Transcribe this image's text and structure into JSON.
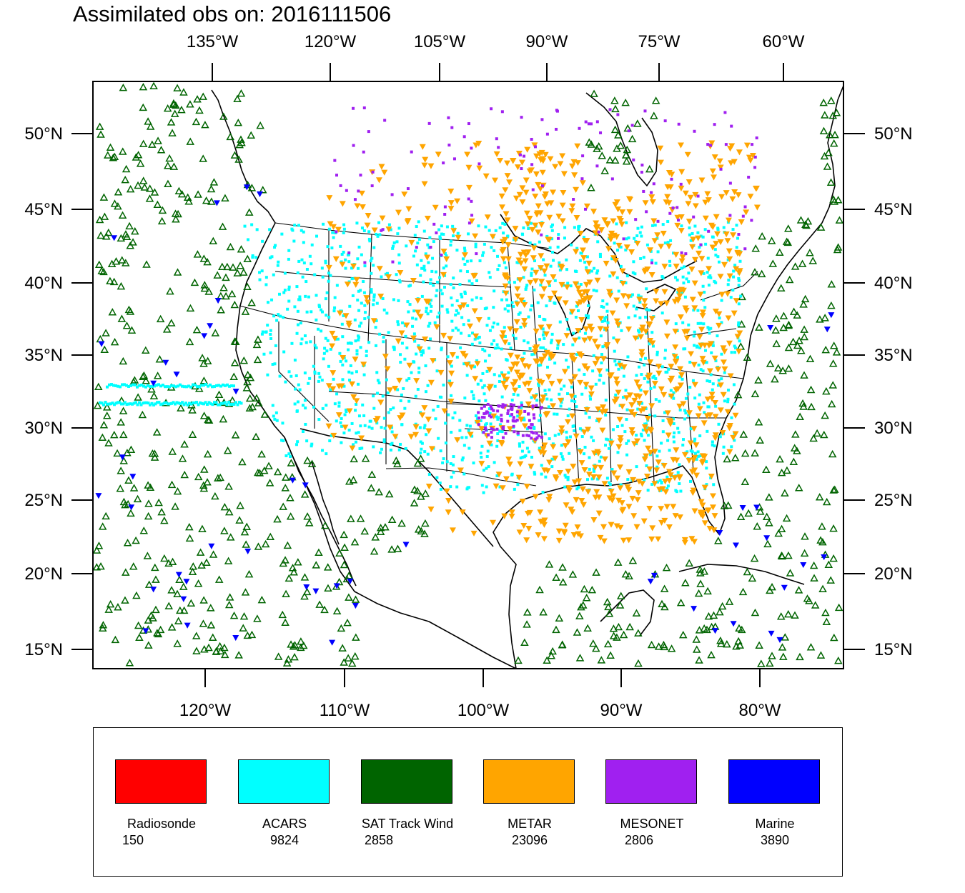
{
  "title": "Assimilated obs on: 2016111506",
  "top_lon_labels": [
    "135°W",
    "120°W",
    "105°W",
    "90°W",
    "75°W",
    "60°W"
  ],
  "bottom_lon_labels": [
    "120°W",
    "110°W",
    "100°W",
    "90°W",
    "80°W"
  ],
  "lat_labels": [
    "50°N",
    "45°N",
    "40°N",
    "35°N",
    "30°N",
    "25°N",
    "20°N",
    "15°N"
  ],
  "colors": {
    "radiosonde": "#ff0000",
    "acars": "#00ffff",
    "sat_track_wind": "#006400",
    "metar": "#ffa500",
    "mesonet": "#a020f0",
    "marine": "#0000ff"
  },
  "legend": [
    {
      "name": "Radiosonde",
      "count": "150",
      "color": "#ff0000"
    },
    {
      "name": "ACARS",
      "count": "9824",
      "color": "#00ffff"
    },
    {
      "name": "SAT Track Wind",
      "count": "2858",
      "color": "#006400"
    },
    {
      "name": "METAR",
      "count": "23096",
      "color": "#ffa500"
    },
    {
      "name": "MESONET",
      "count": "2806",
      "color": "#a020f0"
    },
    {
      "name": "Marine",
      "count": "3890",
      "color": "#0000ff"
    }
  ]
}
